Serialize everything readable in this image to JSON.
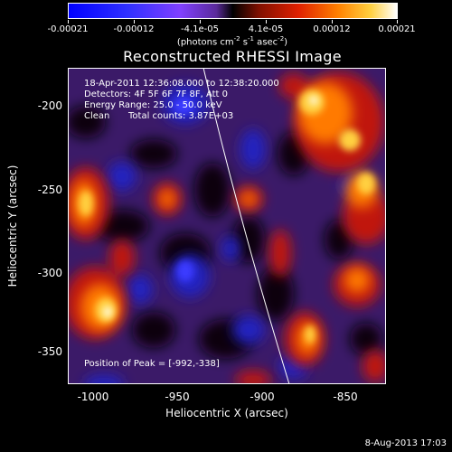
{
  "colorbar": {
    "labels": [
      "-0.00021",
      "-0.00012",
      "-4.1e-05",
      "4.1e-05",
      "0.00012",
      "0.00021"
    ],
    "units_pre": "(photons cm",
    "units_mid1": " s",
    "units_mid2": " asec",
    "units_post": ")",
    "exp_cm": "-2",
    "exp_s": "-1",
    "exp_asec": "-2"
  },
  "title": "Reconstructed RHESSI Image",
  "info": {
    "time": "18-Apr-2011 12:36:08.000 to 12:38:20.000",
    "detectors": "Detectors: 4F 5F 6F 7F 8F, Att 0",
    "energy": "Energy Range: 25.0 - 50.0 keV",
    "clean": "Clean",
    "counts": "Total counts: 3.87E+03",
    "peak": "Position of Peak = [-992,-338]"
  },
  "axes": {
    "xlabel": "Heliocentric X (arcsec)",
    "ylabel": "Heliocentric Y (arcsec)",
    "xticks": [
      "-1000",
      "-950",
      "-900",
      "-850"
    ],
    "yticks": [
      "-200",
      "-250",
      "-300",
      "-350"
    ]
  },
  "stamp": "8-Aug-2013 17:03"
}
